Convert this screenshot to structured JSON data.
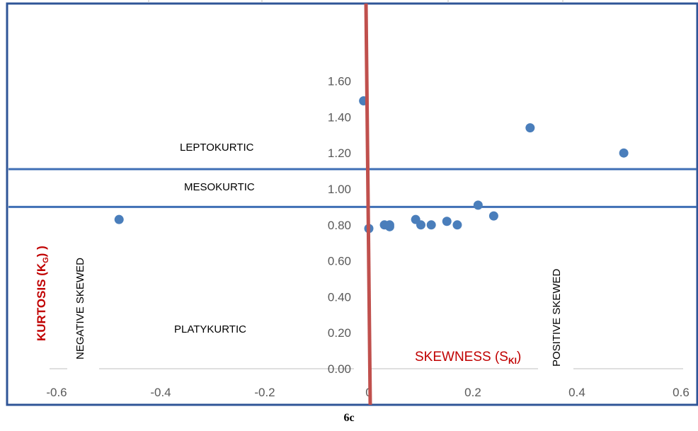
{
  "chart_data": {
    "type": "scatter",
    "xlim": [
      -0.6,
      0.6
    ],
    "ylim": [
      0.0,
      1.8
    ],
    "x_ticks": [
      "-0.6",
      "-0.4",
      "-0.2",
      "0",
      "0.2",
      "0.4",
      "0.6"
    ],
    "y_ticks": [
      "0.00",
      "0.20",
      "0.40",
      "0.60",
      "0.80",
      "1.00",
      "1.20",
      "1.40",
      "1.60"
    ],
    "x_tick_values": [
      -0.6,
      -0.4,
      -0.2,
      0.0,
      0.2,
      0.4,
      0.6
    ],
    "y_tick_values": [
      0.0,
      0.2,
      0.4,
      0.6,
      0.8,
      1.0,
      1.2,
      1.4,
      1.6
    ],
    "xlabel": "SKEWNESS (S",
    "xlabel_sub": "KI",
    "xlabel_suffix": ")",
    "ylabel": "KURTOSIS (K",
    "ylabel_sub": "G",
    "ylabel_suffix": ") )",
    "horizontal_lines": [
      1.11,
      0.9
    ],
    "vertical_line": 0.0,
    "points": [
      {
        "x": -0.48,
        "y": 0.83
      },
      {
        "x": -0.01,
        "y": 1.49
      },
      {
        "x": 0.0,
        "y": 0.78
      },
      {
        "x": 0.03,
        "y": 0.8
      },
      {
        "x": 0.04,
        "y": 0.79
      },
      {
        "x": 0.04,
        "y": 0.8
      },
      {
        "x": 0.09,
        "y": 0.83
      },
      {
        "x": 0.1,
        "y": 0.8
      },
      {
        "x": 0.12,
        "y": 0.8
      },
      {
        "x": 0.15,
        "y": 0.82
      },
      {
        "x": 0.17,
        "y": 0.8
      },
      {
        "x": 0.21,
        "y": 0.91
      },
      {
        "x": 0.24,
        "y": 0.85
      },
      {
        "x": 0.31,
        "y": 1.34
      },
      {
        "x": 0.49,
        "y": 1.2
      }
    ],
    "grid": false,
    "legend": "none"
  },
  "annotations": {
    "leptokurtic": "LEPTOKURTIC",
    "mesokurtic": "MESOKURTIC",
    "platykurtic": "PLATYKURTIC",
    "negative_skewed": "NEGATIVE  SKEWED",
    "positive_skewed": "POSITIVE  SKEWED"
  },
  "caption": "6c",
  "colors": {
    "point": "#4a7ebb",
    "hline": "#3f6fb5",
    "vline": "#c0504d",
    "axis_label": "#c00000",
    "frame": "#2f5597",
    "tick_text": "#595959"
  }
}
